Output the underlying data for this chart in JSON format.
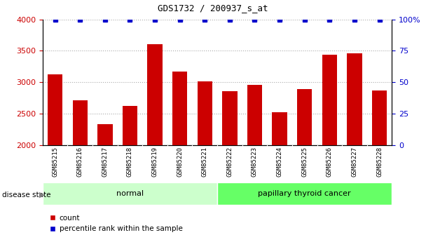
{
  "title": "GDS1732 / 200937_s_at",
  "samples": [
    "GSM85215",
    "GSM85216",
    "GSM85217",
    "GSM85218",
    "GSM85219",
    "GSM85220",
    "GSM85221",
    "GSM85222",
    "GSM85223",
    "GSM85224",
    "GSM85225",
    "GSM85226",
    "GSM85227",
    "GSM85228"
  ],
  "counts": [
    3130,
    2710,
    2340,
    2620,
    3600,
    3170,
    3010,
    2860,
    2960,
    2520,
    2890,
    3440,
    3460,
    2870
  ],
  "percentiles": [
    100,
    100,
    100,
    100,
    100,
    100,
    100,
    100,
    100,
    100,
    100,
    100,
    100,
    100
  ],
  "bar_color": "#cc0000",
  "dot_color": "#0000cc",
  "ylim_left": [
    2000,
    4000
  ],
  "ylim_right": [
    0,
    100
  ],
  "yticks_left": [
    2000,
    2500,
    3000,
    3500,
    4000
  ],
  "yticks_right": [
    0,
    25,
    50,
    75,
    100
  ],
  "normal_indices": [
    0,
    1,
    2,
    3,
    4,
    5,
    6
  ],
  "cancer_indices": [
    7,
    8,
    9,
    10,
    11,
    12,
    13
  ],
  "normal_label": "normal",
  "cancer_label": "papillary thyroid cancer",
  "disease_state_label": "disease state",
  "legend_count": "count",
  "legend_percentile": "percentile rank within the sample",
  "normal_color": "#ccffcc",
  "cancer_color": "#66ff66",
  "tick_label_color_left": "#cc0000",
  "tick_label_color_right": "#0000cc",
  "grid_color": "#aaaaaa",
  "bg_color": "#d8d8d8"
}
